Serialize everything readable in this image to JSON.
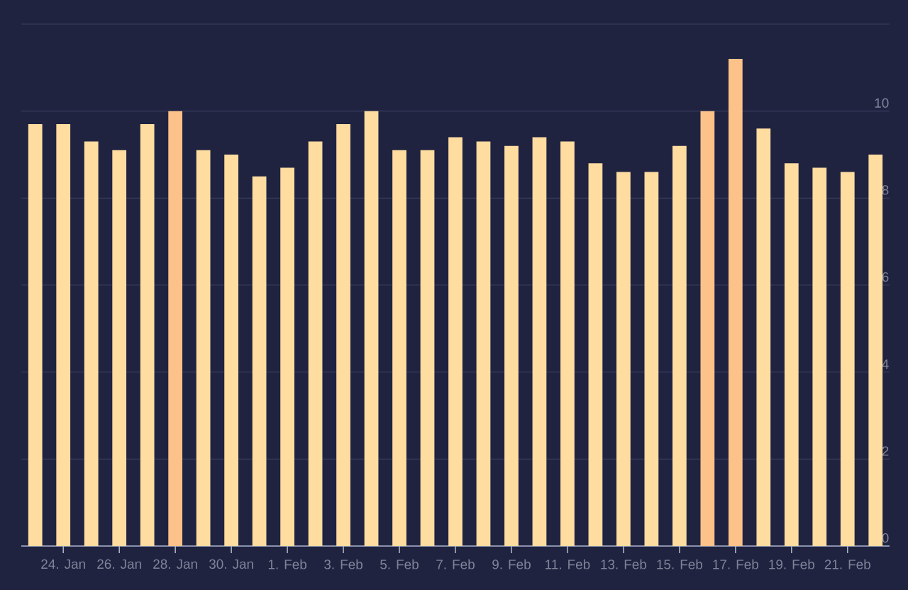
{
  "chart_data": {
    "type": "bar",
    "categories": [
      null,
      "24. Jan",
      null,
      "26. Jan",
      null,
      "28. Jan",
      null,
      "30. Jan",
      null,
      "1. Feb",
      null,
      "3. Feb",
      null,
      "5. Feb",
      null,
      "7. Feb",
      null,
      "9. Feb",
      null,
      "11. Feb",
      null,
      "13. Feb",
      null,
      "15. Feb",
      null,
      "17. Feb",
      null,
      "19. Feb",
      null,
      "21. Feb",
      null
    ],
    "values": [
      9.7,
      9.7,
      9.3,
      9.1,
      9.7,
      10.0,
      9.1,
      9.0,
      8.5,
      8.7,
      9.3,
      9.7,
      10.0,
      9.1,
      9.1,
      9.4,
      9.3,
      9.2,
      9.4,
      9.3,
      8.8,
      8.6,
      8.6,
      9.2,
      10.0,
      11.2,
      9.6,
      8.8,
      8.7,
      8.6,
      9.0
    ],
    "colors": [
      "#ffdca0",
      "#ffdca0",
      "#ffdca0",
      "#ffdca0",
      "#ffdca0",
      "#fcc28a",
      "#ffdca0",
      "#ffdca0",
      "#ffdca0",
      "#ffdca0",
      "#ffdca0",
      "#ffdca0",
      "#ffdca0",
      "#ffdca0",
      "#ffdca0",
      "#ffdca0",
      "#ffdca0",
      "#ffdca0",
      "#ffdca0",
      "#ffdca0",
      "#ffdca0",
      "#ffdca0",
      "#ffdca0",
      "#ffdca0",
      "#fcc28a",
      "#fcc28a",
      "#ffdca0",
      "#ffdca0",
      "#ffdca0",
      "#ffdca0",
      "#ffdca0"
    ],
    "ylim": [
      0,
      12
    ],
    "yticks": [
      0,
      2,
      4,
      6,
      8,
      10,
      {
        "value": 12,
        "label": null
      }
    ],
    "grid": "y"
  }
}
